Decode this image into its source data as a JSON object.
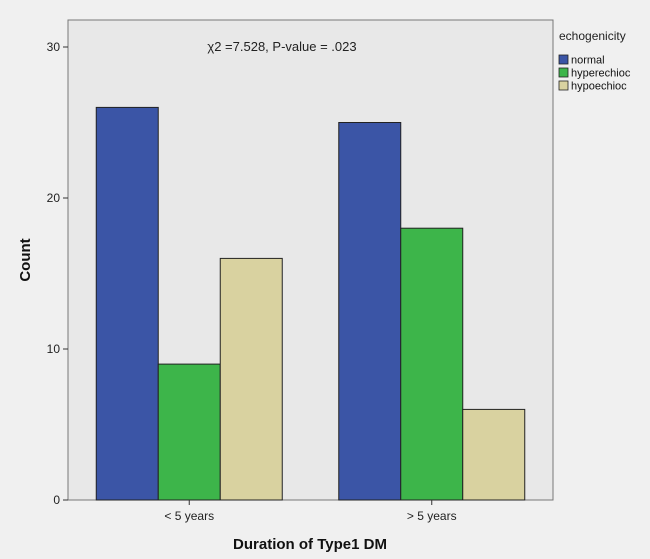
{
  "chart_data": {
    "type": "bar",
    "categories": [
      "< 5 years",
      "> 5 years"
    ],
    "series": [
      {
        "name": "normal",
        "values": [
          26,
          25
        ],
        "color": "#3b55a6"
      },
      {
        "name": "hyperechioc",
        "values": [
          9,
          18
        ],
        "color": "#3db54a"
      },
      {
        "name": "hypoechioc",
        "values": [
          16,
          6
        ],
        "color": "#d9d2a0"
      }
    ],
    "xlabel": "Duration of Type1 DM",
    "ylabel": "Count",
    "ylim": [
      0,
      30
    ],
    "yticks": [
      0,
      10,
      20,
      30
    ],
    "legend": {
      "title": "echogenicity",
      "placement": "top-right"
    },
    "annotation": "χ2 =7.528, P-value = .023",
    "plot_background": "#e8e8e8",
    "grid": false
  }
}
